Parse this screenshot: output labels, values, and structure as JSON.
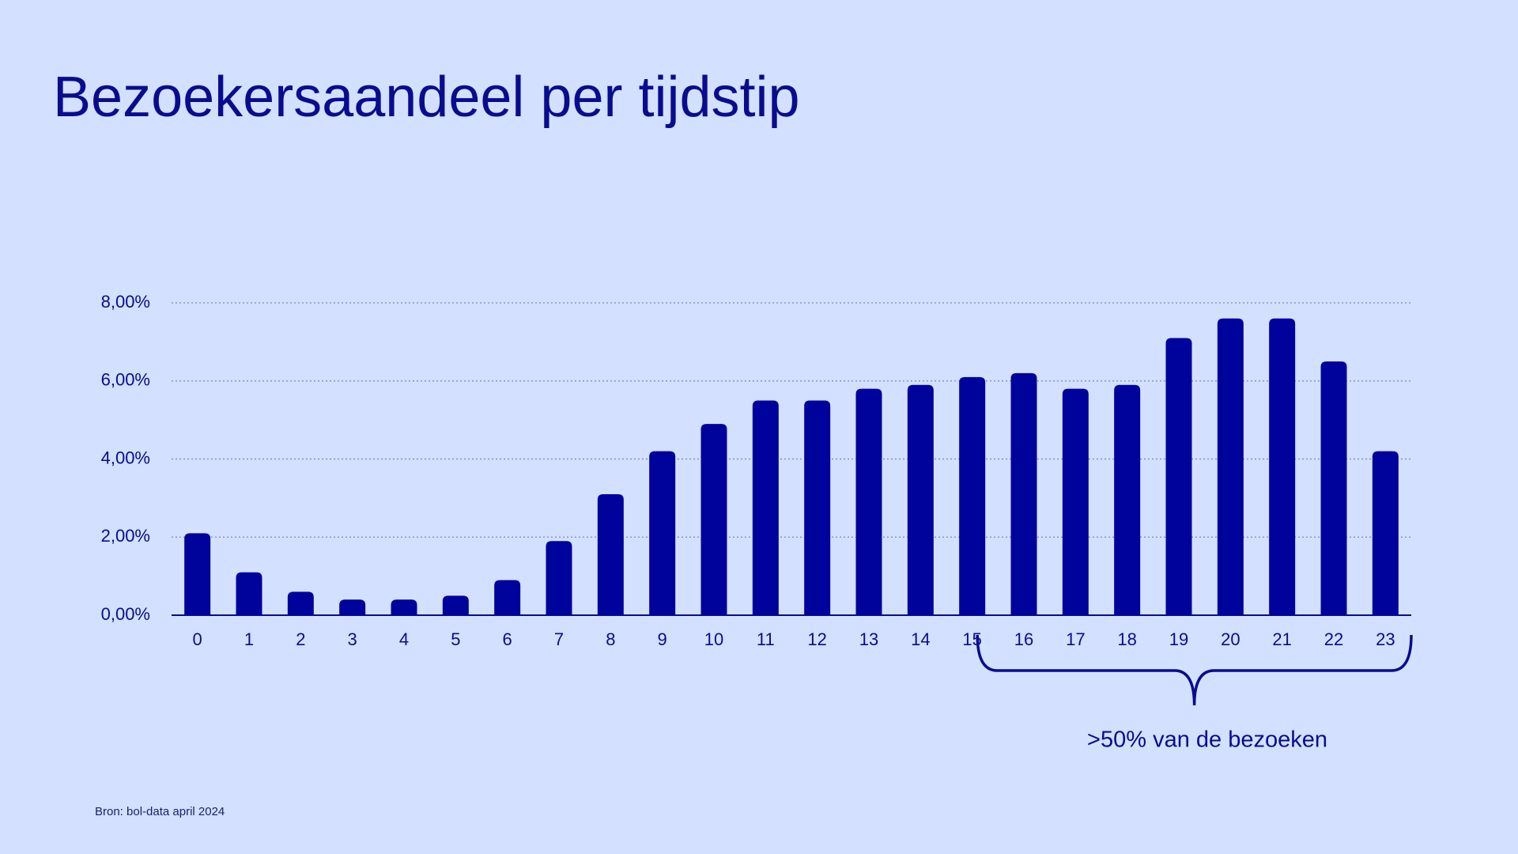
{
  "chart_data": {
    "type": "bar",
    "title": "Bezoekersaandeel per tijdstip",
    "categories": [
      "0",
      "1",
      "2",
      "3",
      "4",
      "5",
      "6",
      "7",
      "8",
      "9",
      "10",
      "11",
      "12",
      "13",
      "14",
      "15",
      "16",
      "17",
      "18",
      "19",
      "20",
      "21",
      "22",
      "23"
    ],
    "values": [
      2.1,
      1.1,
      0.6,
      0.4,
      0.4,
      0.5,
      0.9,
      1.9,
      3.1,
      4.2,
      4.9,
      5.5,
      5.5,
      5.8,
      5.9,
      6.1,
      6.2,
      5.8,
      5.9,
      7.1,
      7.6,
      7.6,
      6.5,
      4.2
    ],
    "color": "#00039b",
    "ylim": [
      0,
      8
    ],
    "yticks": [
      {
        "value": 0,
        "label": "0,00%"
      },
      {
        "value": 2,
        "label": "2,00%"
      },
      {
        "value": 4,
        "label": "4,00%"
      },
      {
        "value": 6,
        "label": "6,00%"
      },
      {
        "value": 8,
        "label": "8,00%"
      }
    ],
    "grid": true,
    "annotation": ">50% van de bezoeken",
    "source": "Bron: bol-data april 2024"
  }
}
